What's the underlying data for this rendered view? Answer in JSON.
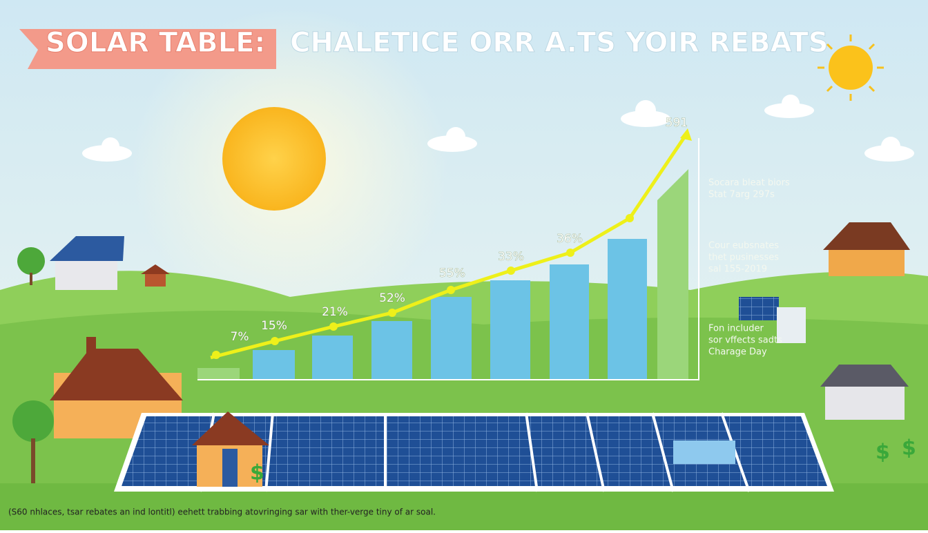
{
  "header": {
    "title_highlight": "SOLAR TABLE:",
    "title_rest": "CHALETICE ORR A.TS YOIR REBATS"
  },
  "point_labels": [
    "7%",
    "15%",
    "21%",
    "52%",
    "55%",
    "33%",
    "36%",
    "591"
  ],
  "side_notes": [
    [
      "Socara bleat biors",
      "Stat 7arg 297s"
    ],
    [
      "Cour eubsnates",
      "thet pusinesses",
      "sal 155-2019"
    ],
    [
      "Fon includer",
      "sor vffects sadts",
      "Charage Day"
    ]
  ],
  "caption": "(S60 nhlaces, tsar rebates an ind lontitl) eehett trabbing atovringing sar with ther-verge tiny of ar soal."
}
